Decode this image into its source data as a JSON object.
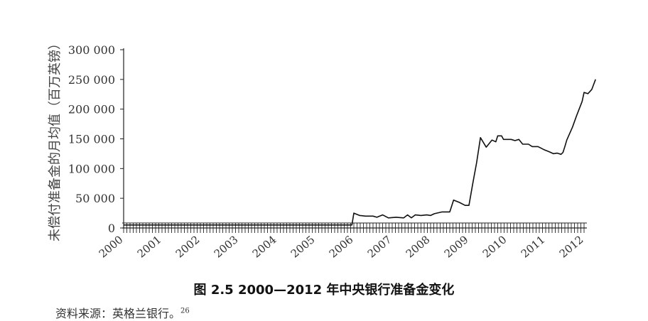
{
  "figure": {
    "caption": "图 2.5    2000—2012 年中央银行准备金变化",
    "source_text": "资料来源：英格兰银行。",
    "source_ref": "26"
  },
  "chart_data": {
    "type": "line",
    "title": "",
    "xlabel": "",
    "ylabel": "未偿付准备金的月均值（百万英镑）",
    "ylim": [
      0,
      300000
    ],
    "yticks": [
      0,
      50000,
      100000,
      150000,
      200000,
      250000,
      300000
    ],
    "ytick_labels": [
      "0",
      "50 000",
      "100 000",
      "150 000",
      "200 000",
      "250 000",
      "300 000"
    ],
    "xlim": [
      2000,
      2012
    ],
    "xtick_labels": [
      "2000",
      "2001",
      "2002",
      "2003",
      "2004",
      "2005",
      "2006",
      "2007",
      "2008",
      "2009",
      "2010",
      "2011",
      "2012"
    ],
    "grid": false,
    "series": [
      {
        "values": [
          [
            2000.0,
            5000
          ],
          [
            2005.95,
            5000
          ],
          [
            2006.0,
            25000
          ],
          [
            2006.15,
            21000
          ],
          [
            2006.3,
            20000
          ],
          [
            2006.5,
            20000
          ],
          [
            2006.6,
            18000
          ],
          [
            2006.75,
            22000
          ],
          [
            2006.9,
            17000
          ],
          [
            2007.1,
            18000
          ],
          [
            2007.3,
            17000
          ],
          [
            2007.4,
            22000
          ],
          [
            2007.5,
            17000
          ],
          [
            2007.6,
            22000
          ],
          [
            2007.75,
            21000
          ],
          [
            2007.9,
            22000
          ],
          [
            2008.0,
            21000
          ],
          [
            2008.1,
            24000
          ],
          [
            2008.3,
            27000
          ],
          [
            2008.5,
            27000
          ],
          [
            2008.6,
            47000
          ],
          [
            2008.75,
            43000
          ],
          [
            2008.9,
            38000
          ],
          [
            2009.0,
            38000
          ],
          [
            2009.1,
            75000
          ],
          [
            2009.2,
            110000
          ],
          [
            2009.3,
            152000
          ],
          [
            2009.45,
            136000
          ],
          [
            2009.6,
            148000
          ],
          [
            2009.7,
            145000
          ],
          [
            2009.75,
            155000
          ],
          [
            2009.85,
            155000
          ],
          [
            2009.9,
            149000
          ],
          [
            2010.1,
            149000
          ],
          [
            2010.2,
            147000
          ],
          [
            2010.3,
            149000
          ],
          [
            2010.4,
            141000
          ],
          [
            2010.55,
            141000
          ],
          [
            2010.65,
            137000
          ],
          [
            2010.8,
            137000
          ],
          [
            2010.95,
            132000
          ],
          [
            2011.1,
            128000
          ],
          [
            2011.2,
            125000
          ],
          [
            2011.3,
            126000
          ],
          [
            2011.4,
            124000
          ],
          [
            2011.45,
            127000
          ],
          [
            2011.5,
            137000
          ],
          [
            2011.55,
            148000
          ],
          [
            2011.7,
            170000
          ],
          [
            2011.8,
            188000
          ],
          [
            2011.95,
            213000
          ],
          [
            2012.0,
            228000
          ],
          [
            2012.1,
            226000
          ],
          [
            2012.2,
            233000
          ],
          [
            2012.3,
            250000
          ]
        ]
      }
    ]
  }
}
